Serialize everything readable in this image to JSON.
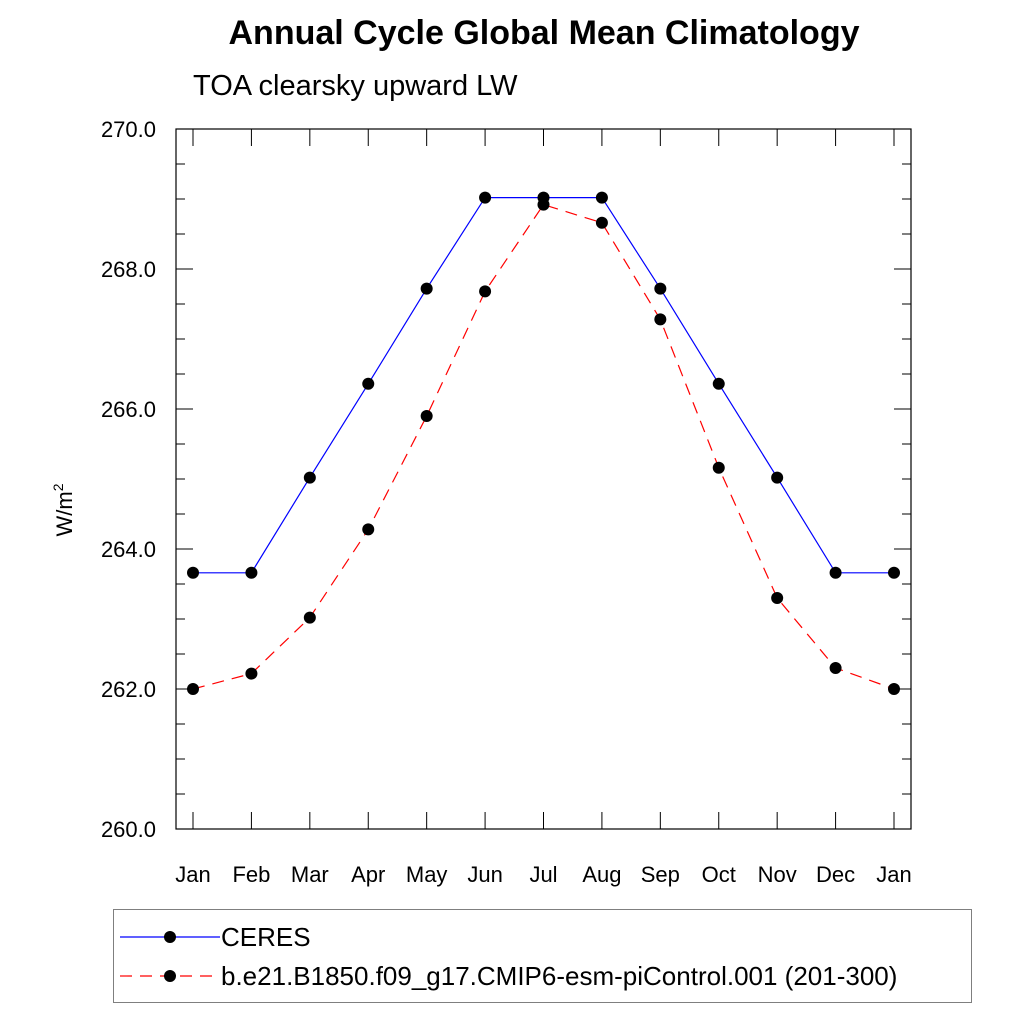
{
  "chart_data": {
    "type": "line",
    "title": "Annual Cycle Global Mean Climatology",
    "subtitle": "TOA clearsky upward LW",
    "ylabel": "W/m",
    "ylabel_superscript": "2",
    "categories": [
      "Jan",
      "Feb",
      "Mar",
      "Apr",
      "May",
      "Jun",
      "Jul",
      "Aug",
      "Sep",
      "Oct",
      "Nov",
      "Dec",
      "Jan"
    ],
    "ylim": [
      260,
      270
    ],
    "yticks": [
      "260.0",
      "262.0",
      "264.0",
      "266.0",
      "268.0",
      "270.0"
    ],
    "legend_position": "bottom",
    "series": [
      {
        "name": "CERES",
        "color": "#0000ff",
        "dash": "solid",
        "values": [
          263.66,
          263.66,
          265.02,
          266.36,
          267.72,
          269.02,
          269.02,
          269.02,
          267.72,
          266.36,
          265.02,
          263.66,
          263.66
        ]
      },
      {
        "name": "b.e21.B1850.f09_g17.CMIP6-esm-piControl.001 (201-300)",
        "color": "#ff0000",
        "dash": "dashed",
        "values": [
          262.0,
          262.22,
          263.02,
          264.28,
          265.9,
          267.68,
          268.92,
          268.66,
          267.28,
          265.16,
          263.3,
          262.3,
          262.0
        ]
      }
    ]
  }
}
